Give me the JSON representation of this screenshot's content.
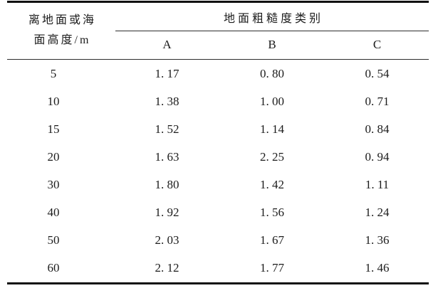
{
  "page": {
    "background": "#ffffff",
    "text_color": "#1c1c1c",
    "thick_rule_color": "#101010",
    "thin_rule_color": "#2e2e2e"
  },
  "table": {
    "row_header_line1": "离地面或海",
    "row_header_line2": "面高度/m",
    "column_group_title": "地面粗糙度类别",
    "column_headers": [
      "A",
      "B",
      "C"
    ],
    "rows": [
      [
        "5",
        "1. 17",
        "0. 80",
        "0. 54"
      ],
      [
        "10",
        "1. 38",
        "1. 00",
        "0. 71"
      ],
      [
        "15",
        "1. 52",
        "1. 14",
        "0. 84"
      ],
      [
        "20",
        "1. 63",
        "2. 25",
        "0. 94"
      ],
      [
        "30",
        "1. 80",
        "1. 42",
        "1. 11"
      ],
      [
        "40",
        "1. 92",
        "1. 56",
        "1. 24"
      ],
      [
        "50",
        "2. 03",
        "1. 67",
        "1. 36"
      ],
      [
        "60",
        "2. 12",
        "1. 77",
        "1. 46"
      ]
    ]
  },
  "chart_data": {
    "type": "table",
    "title": "地面粗糙度类别",
    "row_label": "离地面或海面高度/m",
    "categories": [
      5,
      10,
      15,
      20,
      30,
      40,
      50,
      60
    ],
    "series": [
      {
        "name": "A",
        "values": [
          1.17,
          1.38,
          1.52,
          1.63,
          1.8,
          1.92,
          2.03,
          2.12
        ]
      },
      {
        "name": "B",
        "values": [
          0.8,
          1.0,
          1.14,
          2.25,
          1.42,
          1.56,
          1.67,
          1.77
        ]
      },
      {
        "name": "C",
        "values": [
          0.54,
          0.71,
          0.84,
          0.94,
          1.11,
          1.24,
          1.36,
          1.46
        ]
      }
    ]
  }
}
